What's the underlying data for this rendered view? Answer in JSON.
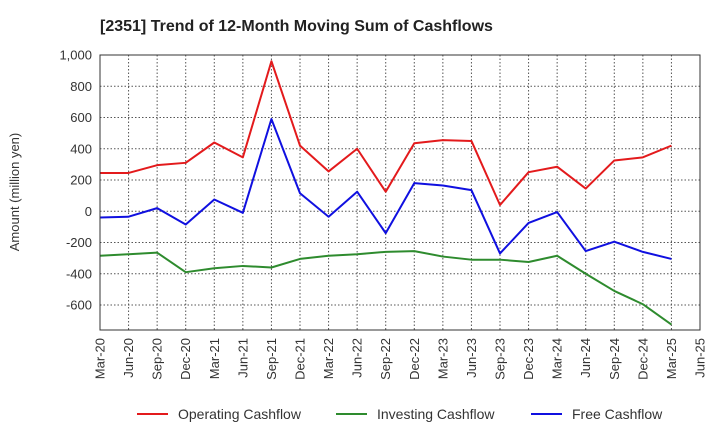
{
  "chart_data": {
    "type": "line",
    "title": "[2351]  Trend of 12-Month Moving Sum of Cashflows",
    "xlabel": "",
    "ylabel": "Amount (million yen)",
    "ylim": [
      -760,
      1000
    ],
    "yticks": [
      1000,
      800,
      600,
      400,
      200,
      0,
      -200,
      -400,
      -600
    ],
    "ytick_labels": [
      "1,000",
      "800",
      "600",
      "400",
      "200",
      "0",
      "-200",
      "-400",
      "-600"
    ],
    "x_ticks": [
      "Mar-20",
      "Jun-20",
      "Sep-20",
      "Dec-20",
      "Mar-21",
      "Jun-21",
      "Sep-21",
      "Dec-21",
      "Mar-22",
      "Jun-22",
      "Sep-22",
      "Dec-22",
      "Mar-23",
      "Jun-23",
      "Sep-23",
      "Dec-23",
      "Mar-24",
      "Jun-24",
      "Sep-24",
      "Dec-24",
      "Mar-25",
      "Jun-25"
    ],
    "grid": true,
    "legend_position": "bottom",
    "series": [
      {
        "name": "Operating Cashflow",
        "color": "#e31a1c",
        "values": [
          245,
          245,
          295,
          310,
          440,
          345,
          960,
          420,
          255,
          400,
          125,
          435,
          455,
          450,
          40,
          250,
          285,
          145,
          325,
          345,
          420
        ]
      },
      {
        "name": "Investing Cashflow",
        "color": "#2e8b2e",
        "values": [
          -285,
          -275,
          -265,
          -390,
          -365,
          -350,
          -360,
          -305,
          -285,
          -275,
          -260,
          -255,
          -290,
          -310,
          -310,
          -325,
          -285,
          -400,
          -510,
          -595,
          -725
        ]
      },
      {
        "name": "Free Cashflow",
        "color": "#1010e0",
        "values": [
          -40,
          -35,
          20,
          -85,
          75,
          -10,
          590,
          115,
          -35,
          125,
          -140,
          180,
          165,
          135,
          -270,
          -75,
          -5,
          -255,
          -195,
          -260,
          -305
        ]
      }
    ]
  }
}
